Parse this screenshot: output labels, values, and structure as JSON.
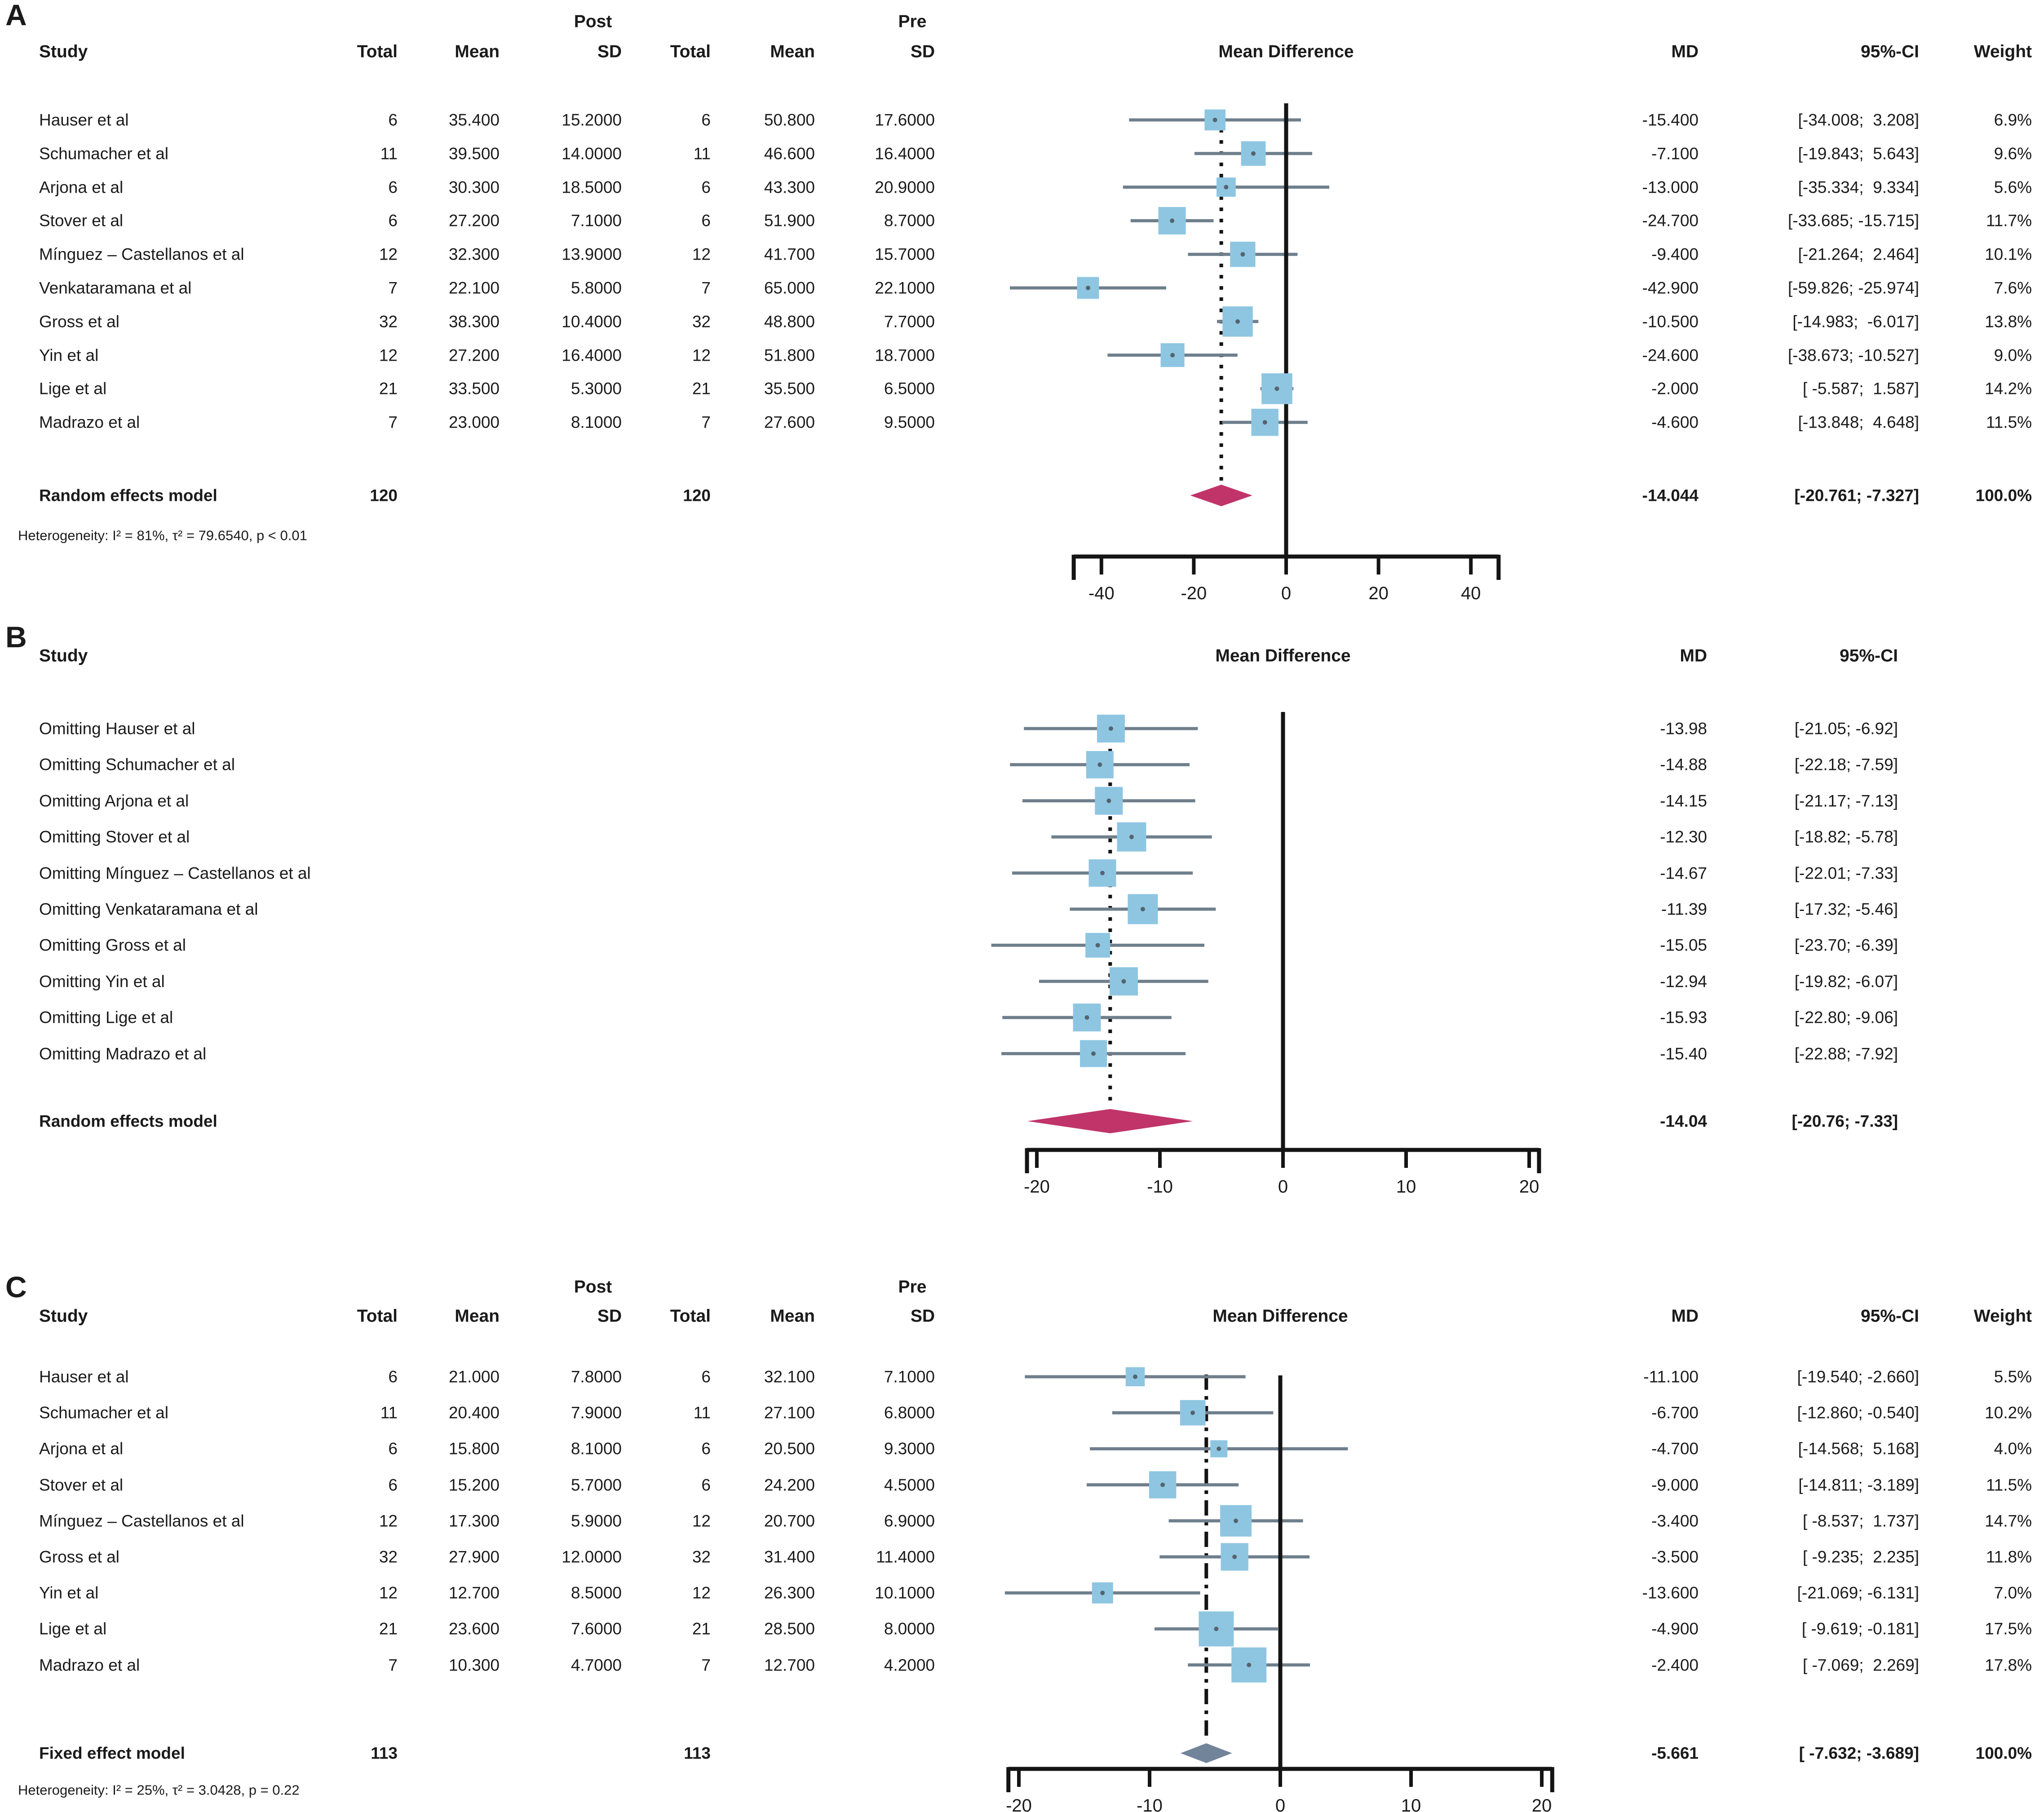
{
  "chart_data": [
    {
      "panel": "A",
      "type": "forest",
      "title": "Mean Difference",
      "model_label": "Random effects model",
      "heterogeneity": "Heterogeneity: I² = 81%, τ² = 79.6540, p < 0.01",
      "headers": {
        "study": "Study",
        "post": "Post",
        "pre": "Pre",
        "total": "Total",
        "mean": "Mean",
        "sd": "SD",
        "md": "MD",
        "ci": "95%-CI",
        "weight": "Weight"
      },
      "axis": {
        "min": -46,
        "max": 46,
        "ticks": [
          -40,
          -20,
          0,
          20,
          40
        ]
      },
      "effect_line": -14.044,
      "dash": "dotted",
      "colors": {
        "square": "#8ec6e2",
        "ci_line": "#6f7f8c",
        "diamond": "#c0346a",
        "axis": "#141414",
        "dot": "#55636e"
      },
      "studies": [
        {
          "name": "Hauser et al",
          "total_post": "6",
          "mean_post": "35.400",
          "sd_post": "15.2000",
          "total_pre": "6",
          "mean_pre": "50.800",
          "sd_pre": "17.6000",
          "md": -15.4,
          "lo": -34.008,
          "hi": 3.208,
          "md_text": "-15.400",
          "ci_text": "[-34.008;  3.208]",
          "weight": 6.9,
          "weight_text": "6.9%"
        },
        {
          "name": "Schumacher et al",
          "total_post": "11",
          "mean_post": "39.500",
          "sd_post": "14.0000",
          "total_pre": "11",
          "mean_pre": "46.600",
          "sd_pre": "16.4000",
          "md": -7.1,
          "lo": -19.843,
          "hi": 5.643,
          "md_text": "-7.100",
          "ci_text": "[-19.843;  5.643]",
          "weight": 9.6,
          "weight_text": "9.6%"
        },
        {
          "name": "Arjona et al",
          "total_post": "6",
          "mean_post": "30.300",
          "sd_post": "18.5000",
          "total_pre": "6",
          "mean_pre": "43.300",
          "sd_pre": "20.9000",
          "md": -13.0,
          "lo": -35.334,
          "hi": 9.334,
          "md_text": "-13.000",
          "ci_text": "[-35.334;  9.334]",
          "weight": 5.6,
          "weight_text": "5.6%"
        },
        {
          "name": "Stover et al",
          "total_post": "6",
          "mean_post": "27.200",
          "sd_post": "7.1000",
          "total_pre": "6",
          "mean_pre": "51.900",
          "sd_pre": "8.7000",
          "md": -24.7,
          "lo": -33.685,
          "hi": -15.715,
          "md_text": "-24.700",
          "ci_text": "[-33.685; -15.715]",
          "weight": 11.7,
          "weight_text": "11.7%"
        },
        {
          "name": "Mínguez – Castellanos et al",
          "total_post": "12",
          "mean_post": "32.300",
          "sd_post": "13.9000",
          "total_pre": "12",
          "mean_pre": "41.700",
          "sd_pre": "15.7000",
          "md": -9.4,
          "lo": -21.264,
          "hi": 2.464,
          "md_text": "-9.400",
          "ci_text": "[-21.264;  2.464]",
          "weight": 10.1,
          "weight_text": "10.1%"
        },
        {
          "name": "Venkataramana et al",
          "total_post": "7",
          "mean_post": "22.100",
          "sd_post": "5.8000",
          "total_pre": "7",
          "mean_pre": "65.000",
          "sd_pre": "22.1000",
          "md": -42.9,
          "lo": -59.826,
          "hi": -25.974,
          "md_text": "-42.900",
          "ci_text": "[-59.826; -25.974]",
          "weight": 7.6,
          "weight_text": "7.6%"
        },
        {
          "name": "Gross et al",
          "total_post": "32",
          "mean_post": "38.300",
          "sd_post": "10.4000",
          "total_pre": "32",
          "mean_pre": "48.800",
          "sd_pre": "7.7000",
          "md": -10.5,
          "lo": -14.983,
          "hi": -6.017,
          "md_text": "-10.500",
          "ci_text": "[-14.983;  -6.017]",
          "weight": 13.8,
          "weight_text": "13.8%"
        },
        {
          "name": "Yin et al",
          "total_post": "12",
          "mean_post": "27.200",
          "sd_post": "16.4000",
          "total_pre": "12",
          "mean_pre": "51.800",
          "sd_pre": "18.7000",
          "md": -24.6,
          "lo": -38.673,
          "hi": -10.527,
          "md_text": "-24.600",
          "ci_text": "[-38.673; -10.527]",
          "weight": 9.0,
          "weight_text": "9.0%"
        },
        {
          "name": "Lige et al",
          "total_post": "21",
          "mean_post": "33.500",
          "sd_post": "5.3000",
          "total_pre": "21",
          "mean_pre": "35.500",
          "sd_pre": "6.5000",
          "md": -2.0,
          "lo": -5.587,
          "hi": 1.587,
          "md_text": "-2.000",
          "ci_text": "[ -5.587;  1.587]",
          "weight": 14.2,
          "weight_text": "14.2%"
        },
        {
          "name": "Madrazo et al",
          "total_post": "7",
          "mean_post": "23.000",
          "sd_post": "8.1000",
          "total_pre": "7",
          "mean_pre": "27.600",
          "sd_pre": "9.5000",
          "md": -4.6,
          "lo": -13.848,
          "hi": 4.648,
          "md_text": "-4.600",
          "ci_text": "[-13.848;  4.648]",
          "weight": 11.5,
          "weight_text": "11.5%"
        }
      ],
      "summary": {
        "total_post": "120",
        "total_pre": "120",
        "md": -14.044,
        "lo": -20.761,
        "hi": -7.327,
        "md_text": "-14.044",
        "ci_text": "[-20.761; -7.327]",
        "weight_text": "100.0%"
      }
    },
    {
      "panel": "B",
      "type": "forest",
      "title": "Mean Difference",
      "model_label": "Random effects model",
      "heterogeneity": null,
      "headers": {
        "study": "Study",
        "md": "MD",
        "ci": "95%-CI"
      },
      "axis": {
        "min": -20.8,
        "max": 20.8,
        "ticks": [
          -20,
          -10,
          0,
          10,
          20
        ]
      },
      "effect_line": -14.04,
      "dash": "dotted",
      "colors": {
        "square": "#8ec6e2",
        "ci_line": "#6f7f8c",
        "diamond": "#c0346a",
        "axis": "#141414",
        "dot": "#55636e"
      },
      "studies": [
        {
          "name": "Omitting Hauser et al",
          "md": -13.98,
          "lo": -21.05,
          "hi": -6.92,
          "md_text": "-13.98",
          "ci_text": "[-21.05; -6.92]",
          "size": 62
        },
        {
          "name": "Omitting Schumacher et al",
          "md": -14.88,
          "lo": -22.18,
          "hi": -7.59,
          "md_text": "-14.88",
          "ci_text": "[-22.18; -7.59]",
          "size": 61
        },
        {
          "name": "Omitting Arjona et al",
          "md": -14.15,
          "lo": -21.17,
          "hi": -7.13,
          "md_text": "-14.15",
          "ci_text": "[-21.17; -7.13]",
          "size": 62
        },
        {
          "name": "Omitting Stover et al",
          "md": -12.3,
          "lo": -18.82,
          "hi": -5.78,
          "md_text": "-12.30",
          "ci_text": "[-18.82; -5.78]",
          "size": 65
        },
        {
          "name": "Omitting Mínguez – Castellanos et al",
          "md": -14.67,
          "lo": -22.01,
          "hi": -7.33,
          "md_text": "-14.67",
          "ci_text": "[-22.01; -7.33]",
          "size": 61
        },
        {
          "name": "Omitting Venkataramana et al",
          "md": -11.39,
          "lo": -17.32,
          "hi": -5.46,
          "md_text": "-11.39",
          "ci_text": "[-17.32; -5.46]",
          "size": 67
        },
        {
          "name": "Omitting Gross et al",
          "md": -15.05,
          "lo": -23.7,
          "hi": -6.39,
          "md_text": "-15.05",
          "ci_text": "[-23.70; -6.39]",
          "size": 55
        },
        {
          "name": "Omitting Yin et al",
          "md": -12.94,
          "lo": -19.82,
          "hi": -6.07,
          "md_text": "-12.94",
          "ci_text": "[-19.82; -6.07]",
          "size": 63
        },
        {
          "name": "Omitting Lige et al",
          "md": -15.93,
          "lo": -22.8,
          "hi": -9.06,
          "md_text": "-15.93",
          "ci_text": "[-22.80; -9.06]",
          "size": 62
        },
        {
          "name": "Omitting Madrazo et al",
          "md": -15.4,
          "lo": -22.88,
          "hi": -7.92,
          "md_text": "-15.40",
          "ci_text": "[-22.88; -7.92]",
          "size": 60
        }
      ],
      "summary": {
        "md": -14.04,
        "lo": -20.76,
        "hi": -7.33,
        "md_text": "-14.04",
        "ci_text": "[-20.76; -7.33]",
        "weight_text": ""
      }
    },
    {
      "panel": "C",
      "type": "forest",
      "title": "Mean Difference",
      "model_label": "Fixed effect model",
      "heterogeneity": "Heterogeneity: I² = 25%, τ² = 3.0428, p = 0.22",
      "headers": {
        "study": "Study",
        "post": "Post",
        "pre": "Pre",
        "total": "Total",
        "mean": "Mean",
        "sd": "SD",
        "md": "MD",
        "ci": "95%-CI",
        "weight": "Weight"
      },
      "axis": {
        "min": -20.8,
        "max": 20.8,
        "ticks": [
          -20,
          -10,
          0,
          10,
          20
        ]
      },
      "effect_line": -5.661,
      "dash": "dashdot",
      "colors": {
        "square": "#8ec6e2",
        "ci_line": "#6f7f8c",
        "diamond": "#72849a",
        "axis": "#141414",
        "dot": "#55636e"
      },
      "studies": [
        {
          "name": "Hauser et al",
          "total_post": "6",
          "mean_post": "21.000",
          "sd_post": "7.8000",
          "total_pre": "6",
          "mean_pre": "32.100",
          "sd_pre": "7.1000",
          "md": -11.1,
          "lo": -19.54,
          "hi": -2.66,
          "md_text": "-11.100",
          "ci_text": "[-19.540; -2.660]",
          "weight": 5.5,
          "weight_text": "5.5%"
        },
        {
          "name": "Schumacher et al",
          "total_post": "11",
          "mean_post": "20.400",
          "sd_post": "7.9000",
          "total_pre": "11",
          "mean_pre": "27.100",
          "sd_pre": "6.8000",
          "md": -6.7,
          "lo": -12.86,
          "hi": -0.54,
          "md_text": "-6.700",
          "ci_text": "[-12.860; -0.540]",
          "weight": 10.2,
          "weight_text": "10.2%"
        },
        {
          "name": "Arjona et al",
          "total_post": "6",
          "mean_post": "15.800",
          "sd_post": "8.1000",
          "total_pre": "6",
          "mean_pre": "20.500",
          "sd_pre": "9.3000",
          "md": -4.7,
          "lo": -14.568,
          "hi": 5.168,
          "md_text": "-4.700",
          "ci_text": "[-14.568;  5.168]",
          "weight": 4.0,
          "weight_text": "4.0%"
        },
        {
          "name": "Stover et al",
          "total_post": "6",
          "mean_post": "15.200",
          "sd_post": "5.7000",
          "total_pre": "6",
          "mean_pre": "24.200",
          "sd_pre": "4.5000",
          "md": -9.0,
          "lo": -14.811,
          "hi": -3.189,
          "md_text": "-9.000",
          "ci_text": "[-14.811; -3.189]",
          "weight": 11.5,
          "weight_text": "11.5%"
        },
        {
          "name": "Mínguez – Castellanos et al",
          "total_post": "12",
          "mean_post": "17.300",
          "sd_post": "5.9000",
          "total_pre": "12",
          "mean_pre": "20.700",
          "sd_pre": "6.9000",
          "md": -3.4,
          "lo": -8.537,
          "hi": 1.737,
          "md_text": "-3.400",
          "ci_text": "[ -8.537;  1.737]",
          "weight": 14.7,
          "weight_text": "14.7%"
        },
        {
          "name": "Gross et al",
          "total_post": "32",
          "mean_post": "27.900",
          "sd_post": "12.0000",
          "total_pre": "32",
          "mean_pre": "31.400",
          "sd_pre": "11.4000",
          "md": -3.5,
          "lo": -9.235,
          "hi": 2.235,
          "md_text": "-3.500",
          "ci_text": "[ -9.235;  2.235]",
          "weight": 11.8,
          "weight_text": "11.8%"
        },
        {
          "name": "Yin et al",
          "total_post": "12",
          "mean_post": "12.700",
          "sd_post": "8.5000",
          "total_pre": "12",
          "mean_pre": "26.300",
          "sd_pre": "10.1000",
          "md": -13.6,
          "lo": -21.069,
          "hi": -6.131,
          "md_text": "-13.600",
          "ci_text": "[-21.069; -6.131]",
          "weight": 7.0,
          "weight_text": "7.0%"
        },
        {
          "name": "Lige et al",
          "total_post": "21",
          "mean_post": "23.600",
          "sd_post": "7.6000",
          "total_pre": "21",
          "mean_pre": "28.500",
          "sd_pre": "8.0000",
          "md": -4.9,
          "lo": -9.619,
          "hi": -0.181,
          "md_text": "-4.900",
          "ci_text": "[ -9.619; -0.181]",
          "weight": 17.5,
          "weight_text": "17.5%"
        },
        {
          "name": "Madrazo et al",
          "total_post": "7",
          "mean_post": "10.300",
          "sd_post": "4.7000",
          "total_pre": "7",
          "mean_pre": "12.700",
          "sd_pre": "4.2000",
          "md": -2.4,
          "lo": -7.069,
          "hi": 2.269,
          "md_text": "-2.400",
          "ci_text": "[ -7.069;  2.269]",
          "weight": 17.8,
          "weight_text": "17.8%"
        }
      ],
      "summary": {
        "total_post": "113",
        "total_pre": "113",
        "md": -5.661,
        "lo": -7.632,
        "hi": -3.689,
        "md_text": "-5.661",
        "ci_text": "[ -7.632; -3.689]",
        "weight_text": "100.0%"
      }
    }
  ]
}
